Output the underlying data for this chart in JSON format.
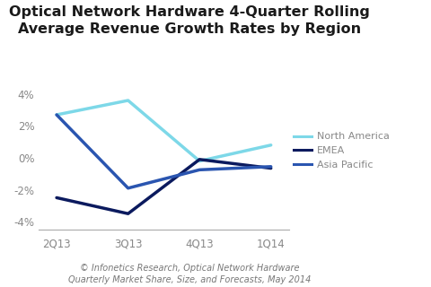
{
  "quarters": [
    "2Q13",
    "3Q13",
    "4Q13",
    "1Q14"
  ],
  "north_america": [
    2.7,
    3.6,
    -0.2,
    0.8
  ],
  "emea": [
    -2.5,
    -3.5,
    -0.1,
    -0.65
  ],
  "asia_pacific": [
    2.7,
    -1.9,
    -0.75,
    -0.55
  ],
  "north_america_color": "#7dd8e8",
  "emea_color": "#0b1a5e",
  "asia_pacific_color": "#2a55b0",
  "line_width": 2.5,
  "title_line1": "Optical Network Hardware 4-Quarter Rolling",
  "title_line2": "Average Revenue Growth Rates by Region",
  "title_fontsize": 11.5,
  "legend_labels": [
    "North America",
    "EMEA",
    "Asia Pacific"
  ],
  "ylim": [
    -4.5,
    4.5
  ],
  "yticks": [
    -4,
    -2,
    0,
    2,
    4
  ],
  "caption_line1": "© Infonetics Research, Optical Network Hardware",
  "caption_line2": "Quarterly Market Share, Size, and Forecasts, May 2014",
  "background_color": "#ffffff",
  "tick_color": "#888888",
  "spine_color": "#aaaaaa"
}
